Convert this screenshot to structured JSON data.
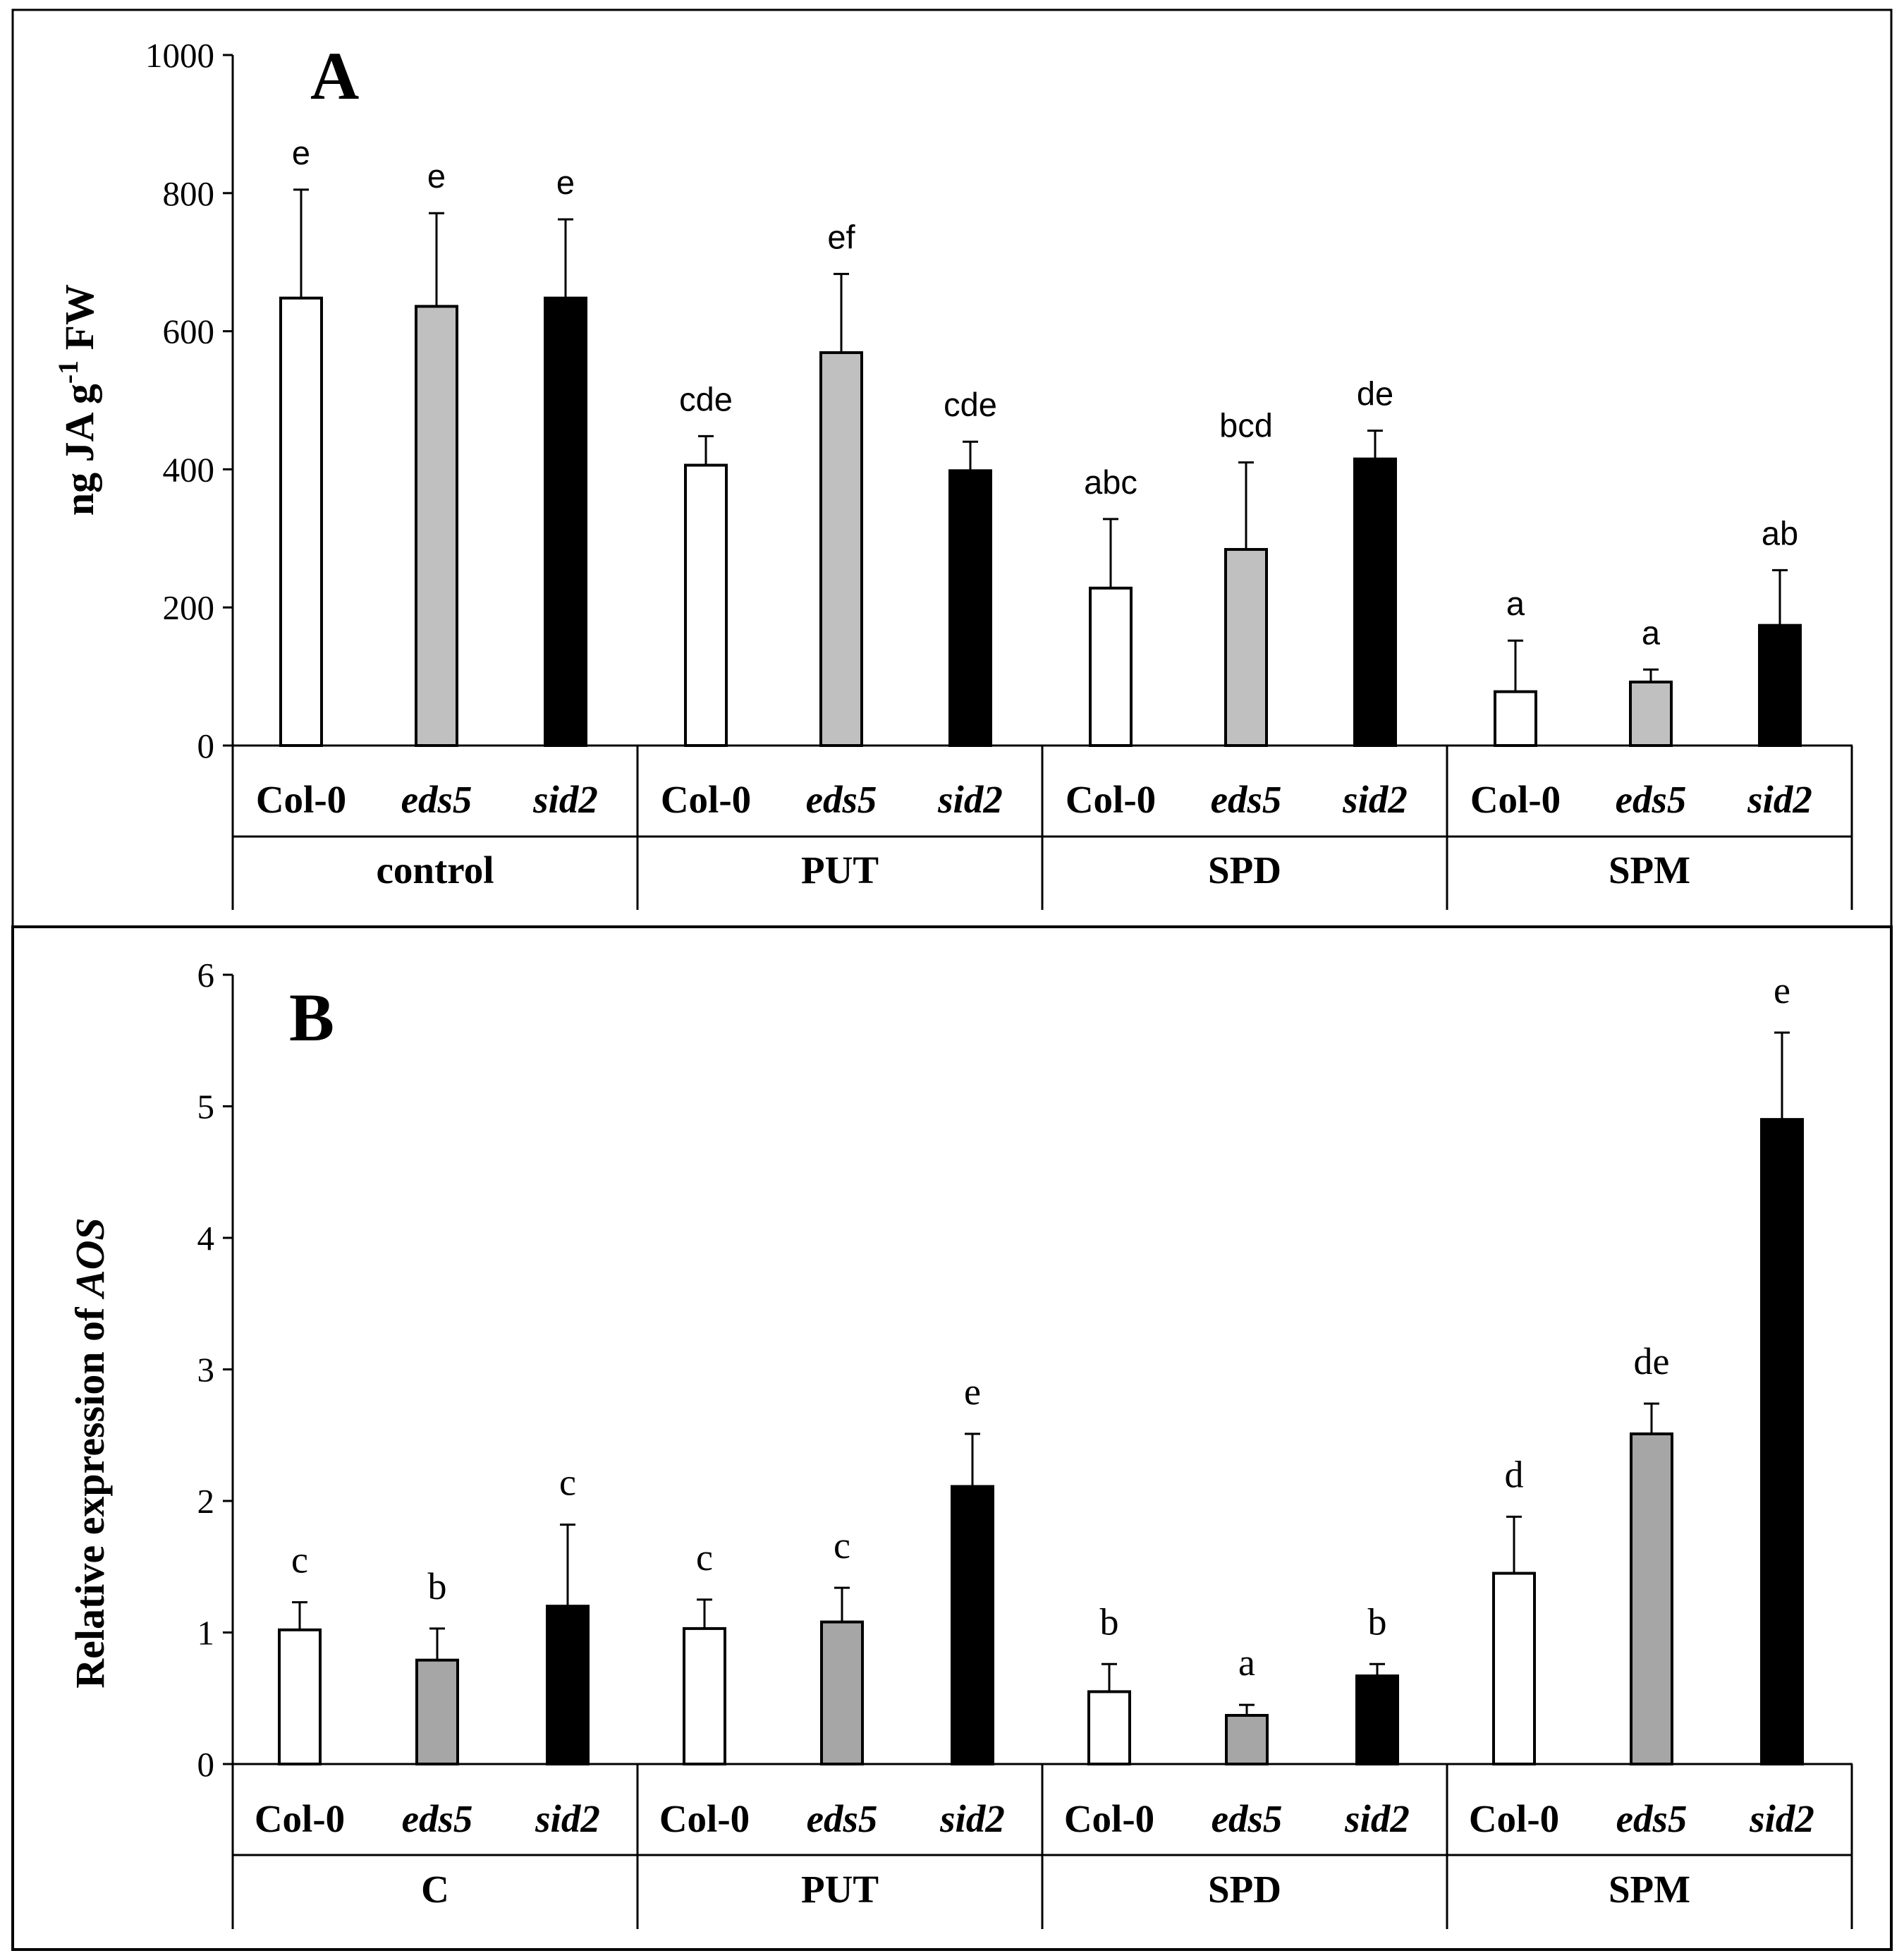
{
  "chart_data": [
    {
      "type": "bar",
      "panel_label": "A",
      "ylabel": "ng JA g⁻¹ FW",
      "ylabel_parts": {
        "main": "ng JA  g",
        "sup": "-1",
        "tail": " FW"
      },
      "ylim": [
        0,
        1000
      ],
      "yticks": [
        0,
        200,
        400,
        600,
        800,
        1000
      ],
      "ytick_labels": [
        "0",
        "200",
        "400",
        "600",
        "800",
        "1000"
      ],
      "groups": [
        "control",
        "PUT",
        "SPD",
        "SPM"
      ],
      "genotypes": [
        "Col-0",
        "eds5",
        "sid2"
      ],
      "genotype_colors": [
        "#ffffff",
        "#c0c0c0",
        "#000000"
      ],
      "bars": [
        {
          "group": "control",
          "genotype": "Col-0",
          "value": 648,
          "error": 157,
          "letter": "e"
        },
        {
          "group": "control",
          "genotype": "eds5",
          "value": 636,
          "error": 135,
          "letter": "e"
        },
        {
          "group": "control",
          "genotype": "sid2",
          "value": 648,
          "error": 114,
          "letter": "e"
        },
        {
          "group": "PUT",
          "genotype": "Col-0",
          "value": 406,
          "error": 42,
          "letter": "cde"
        },
        {
          "group": "PUT",
          "genotype": "eds5",
          "value": 569,
          "error": 114,
          "letter": "ef"
        },
        {
          "group": "PUT",
          "genotype": "sid2",
          "value": 398,
          "error": 42,
          "letter": "cde"
        },
        {
          "group": "SPD",
          "genotype": "Col-0",
          "value": 228,
          "error": 100,
          "letter": "abc"
        },
        {
          "group": "SPD",
          "genotype": "eds5",
          "value": 284,
          "error": 126,
          "letter": "bcd"
        },
        {
          "group": "SPD",
          "genotype": "sid2",
          "value": 415,
          "error": 41,
          "letter": "de"
        },
        {
          "group": "SPM",
          "genotype": "Col-0",
          "value": 78,
          "error": 74,
          "letter": "a"
        },
        {
          "group": "SPM",
          "genotype": "eds5",
          "value": 92,
          "error": 18,
          "letter": "a"
        },
        {
          "group": "SPM",
          "genotype": "sid2",
          "value": 174,
          "error": 80,
          "letter": "ab"
        }
      ]
    },
    {
      "type": "bar",
      "panel_label": "B",
      "ylabel": "Relative expression of AOS",
      "ylabel_parts": {
        "main": "Relative expression of ",
        "italic": "AOS"
      },
      "ylim": [
        0,
        6
      ],
      "yticks": [
        0,
        1,
        2,
        3,
        4,
        5,
        6
      ],
      "ytick_labels": [
        "0",
        "1",
        "2",
        "3",
        "4",
        "5",
        "6"
      ],
      "groups": [
        "C",
        "PUT",
        "SPD",
        "SPM"
      ],
      "genotypes": [
        "Col-0",
        "eds5",
        "sid2"
      ],
      "genotype_colors": [
        "#ffffff",
        "#a6a6a6",
        "#000000"
      ],
      "bars": [
        {
          "group": "C",
          "genotype": "Col-0",
          "value": 1.02,
          "error": 0.21,
          "letter": "c"
        },
        {
          "group": "C",
          "genotype": "eds5",
          "value": 0.79,
          "error": 0.24,
          "letter": "b"
        },
        {
          "group": "C",
          "genotype": "sid2",
          "value": 1.2,
          "error": 0.62,
          "letter": "c"
        },
        {
          "group": "PUT",
          "genotype": "Col-0",
          "value": 1.03,
          "error": 0.22,
          "letter": "c"
        },
        {
          "group": "PUT",
          "genotype": "eds5",
          "value": 1.08,
          "error": 0.26,
          "letter": "c"
        },
        {
          "group": "PUT",
          "genotype": "sid2",
          "value": 2.11,
          "error": 0.4,
          "letter": "e"
        },
        {
          "group": "SPD",
          "genotype": "Col-0",
          "value": 0.55,
          "error": 0.21,
          "letter": "b"
        },
        {
          "group": "SPD",
          "genotype": "eds5",
          "value": 0.37,
          "error": 0.08,
          "letter": "a"
        },
        {
          "group": "SPD",
          "genotype": "sid2",
          "value": 0.67,
          "error": 0.09,
          "letter": "b"
        },
        {
          "group": "SPM",
          "genotype": "Col-0",
          "value": 1.45,
          "error": 0.43,
          "letter": "d"
        },
        {
          "group": "SPM",
          "genotype": "eds5",
          "value": 2.51,
          "error": 0.23,
          "letter": "de"
        },
        {
          "group": "SPM",
          "genotype": "sid2",
          "value": 4.9,
          "error": 0.66,
          "letter": "e"
        }
      ]
    }
  ]
}
